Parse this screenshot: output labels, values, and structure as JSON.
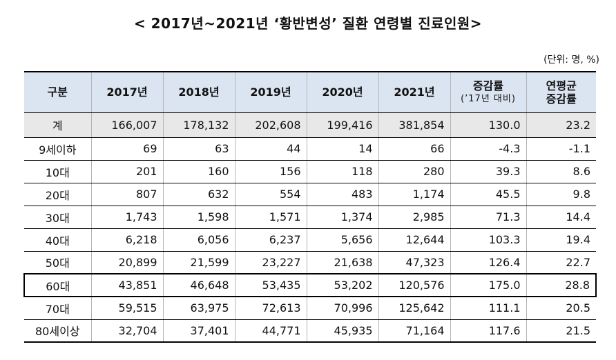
{
  "title": "< 2017년~2021년 ‘황반변성’ 질환 연령별 진료인원>",
  "unit": "(단위: 명, %)",
  "table": {
    "headers": [
      {
        "main": "구분",
        "sub": ""
      },
      {
        "main": "2017년",
        "sub": ""
      },
      {
        "main": "2018년",
        "sub": ""
      },
      {
        "main": "2019년",
        "sub": ""
      },
      {
        "main": "2020년",
        "sub": ""
      },
      {
        "main": "2021년",
        "sub": ""
      },
      {
        "main": "증감률",
        "sub": "(’17년 대비)"
      },
      {
        "main": "연평균",
        "sub": "증감률"
      }
    ],
    "rows": [
      [
        "계",
        "166,007",
        "178,132",
        "202,608",
        "199,416",
        "381,854",
        "130.0",
        "23.2"
      ],
      [
        "9세이하",
        "69",
        "63",
        "44",
        "14",
        "66",
        "-4.3",
        "-1.1"
      ],
      [
        "10대",
        "201",
        "160",
        "156",
        "118",
        "280",
        "39.3",
        "8.6"
      ],
      [
        "20대",
        "807",
        "632",
        "554",
        "483",
        "1,174",
        "45.5",
        "9.8"
      ],
      [
        "30대",
        "1,743",
        "1,598",
        "1,571",
        "1,374",
        "2,985",
        "71.3",
        "14.4"
      ],
      [
        "40대",
        "6,218",
        "6,056",
        "6,237",
        "5,656",
        "12,644",
        "103.3",
        "19.4"
      ],
      [
        "50대",
        "20,899",
        "21,599",
        "23,227",
        "21,638",
        "47,323",
        "126.4",
        "22.7"
      ],
      [
        "60대",
        "43,851",
        "46,648",
        "53,435",
        "53,202",
        "120,576",
        "175.0",
        "28.8"
      ],
      [
        "70대",
        "59,515",
        "63,975",
        "72,613",
        "70,996",
        "125,642",
        "111.1",
        "20.5"
      ],
      [
        "80세이상",
        "32,704",
        "37,401",
        "44,771",
        "45,935",
        "71,164",
        "117.6",
        "21.5"
      ]
    ]
  }
}
